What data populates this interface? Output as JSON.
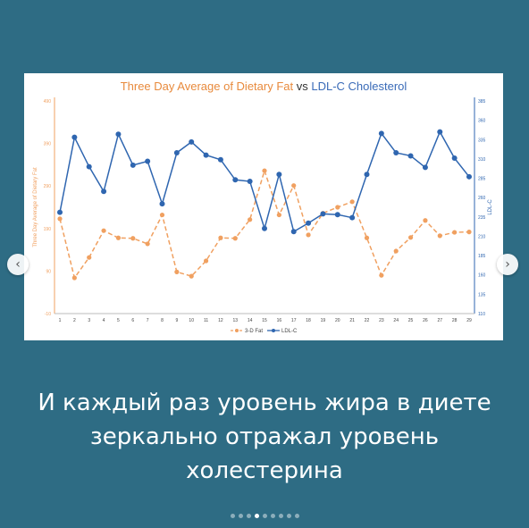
{
  "colors": {
    "background": "#2e6c84",
    "fat_series": "#f0a060",
    "ldl_series": "#2f66b0",
    "title_fat": "#e88a3c",
    "title_ldl": "#3a6bb8",
    "axis_left": "#f0a060",
    "axis_right": "#2f66b0"
  },
  "chart_data": {
    "type": "line",
    "title_parts": {
      "fat": "Three Day Average of Dietary Fat",
      "vs": "vs",
      "ldl": "LDL-C Cholesterol"
    },
    "xlabel": "",
    "ylabel_left": "Three Day Average of Dietary Fat",
    "ylabel_right": "LDL-C",
    "x": [
      1,
      2,
      3,
      4,
      5,
      6,
      7,
      8,
      9,
      10,
      11,
      12,
      13,
      14,
      15,
      16,
      17,
      18,
      19,
      20,
      21,
      22,
      23,
      24,
      25,
      26,
      27,
      28,
      29
    ],
    "ylim_left": [
      -10,
      490
    ],
    "yticks_left": [
      -10,
      90,
      190,
      290,
      390,
      490
    ],
    "ylim_right": [
      110,
      385
    ],
    "yticks_right": [
      110,
      135,
      160,
      185,
      210,
      235,
      260,
      285,
      310,
      335,
      360,
      385
    ],
    "series": [
      {
        "name": "3-D Fat",
        "axis": "left",
        "style": "dashed",
        "values": [
          213,
          74,
          122,
          185,
          168,
          167,
          154,
          222,
          88,
          78,
          114,
          168,
          167,
          211,
          326,
          222,
          291,
          175,
          226,
          240,
          253,
          168,
          80,
          137,
          169,
          209,
          173,
          181,
          182
        ]
      },
      {
        "name": "LDL-C",
        "axis": "right",
        "style": "solid",
        "values": [
          241,
          338,
          300,
          268,
          342,
          302,
          307,
          252,
          318,
          332,
          315,
          309,
          283,
          281,
          220,
          290,
          216,
          227,
          239,
          238,
          234,
          290,
          343,
          318,
          314,
          299,
          345,
          311,
          287
        ]
      }
    ],
    "legend": {
      "placement": "bottom"
    },
    "grid": false
  },
  "caption": {
    "lines": [
      "И каждый раз уровень жира в диете",
      "зеркально отражал уровень",
      "холестерина"
    ]
  },
  "carousel": {
    "prev_glyph": "‹",
    "next_glyph": "›",
    "dot_count": 9,
    "active_index": 3
  }
}
